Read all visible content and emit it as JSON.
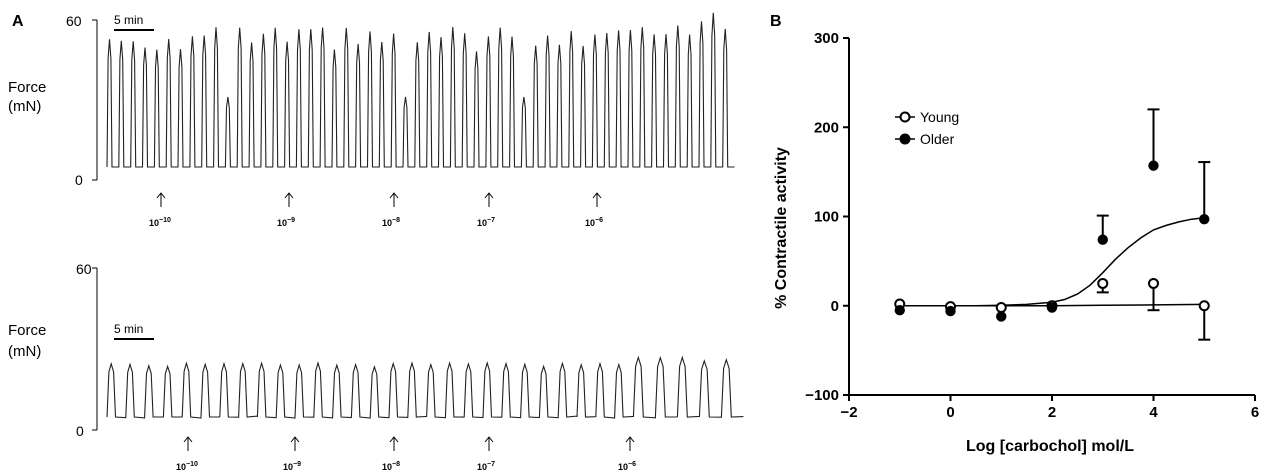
{
  "panel_a": {
    "letter": "A",
    "traces": [
      {
        "y_axis_label_line1": "Force",
        "y_axis_label_line2": "(mN)",
        "y_ticks": [
          "60",
          "0"
        ],
        "y_range": [
          0,
          60
        ],
        "scale_bar_label": "5 min",
        "additions": [
          {
            "mantissa": "10",
            "exponent": "−10"
          },
          {
            "mantissa": "10",
            "exponent": "−9"
          },
          {
            "mantissa": "10",
            "exponent": "−8"
          },
          {
            "mantissa": "10",
            "exponent": "−7"
          },
          {
            "mantissa": "10",
            "exponent": "−6"
          }
        ]
      },
      {
        "y_axis_label_line1": "Force",
        "y_axis_label_line2": "(mN)",
        "y_ticks": [
          "60",
          "0"
        ],
        "y_range": [
          0,
          60
        ],
        "scale_bar_label": "5 min",
        "additions": [
          {
            "mantissa": "10",
            "exponent": "−10"
          },
          {
            "mantissa": "10",
            "exponent": "−9"
          },
          {
            "mantissa": "10",
            "exponent": "−8"
          },
          {
            "mantissa": "10",
            "exponent": "−7"
          },
          {
            "mantissa": "10",
            "exponent": "−6"
          }
        ]
      }
    ]
  },
  "panel_b": {
    "letter": "B"
  },
  "chart_data": {
    "type": "scatter",
    "xlabel": "Log [carbochol] mol/L",
    "ylabel": "% Contractile activity",
    "xlim": [
      -2,
      6
    ],
    "ylim": [
      -100,
      300
    ],
    "x_ticks": [
      "−2",
      "0",
      "2",
      "4",
      "6"
    ],
    "y_ticks": [
      "300",
      "200",
      "100",
      "0",
      "−100"
    ],
    "legend_position": "upper-left",
    "series": [
      {
        "name": "Young",
        "marker": "open-circle",
        "x": [
          -1,
          0,
          1,
          2,
          3,
          4,
          5
        ],
        "y": [
          2,
          -1,
          -2,
          0,
          25,
          25,
          0
        ],
        "error_bar": [
          0,
          0,
          0,
          0,
          10,
          30,
          38
        ],
        "error_direction": "down",
        "fit": [
          [
            -1,
            0
          ],
          [
            0,
            0
          ],
          [
            1,
            0
          ],
          [
            2,
            0
          ],
          [
            3,
            0.5
          ],
          [
            4,
            1
          ],
          [
            5,
            1.5
          ]
        ]
      },
      {
        "name": "Older",
        "marker": "filled-circle",
        "x": [
          -1,
          0,
          1,
          2,
          3,
          4,
          5
        ],
        "y": [
          -5,
          -6,
          -12,
          -2,
          74,
          157,
          97
        ],
        "error_bar": [
          0,
          0,
          0,
          0,
          27,
          63,
          64
        ],
        "error_direction": "up",
        "fit": [
          [
            -1,
            0
          ],
          [
            -0.5,
            0
          ],
          [
            0,
            0
          ],
          [
            0.5,
            0
          ],
          [
            1,
            0.5
          ],
          [
            1.5,
            1.5
          ],
          [
            2,
            4
          ],
          [
            2.25,
            7
          ],
          [
            2.5,
            13
          ],
          [
            2.75,
            23
          ],
          [
            3,
            37
          ],
          [
            3.25,
            52
          ],
          [
            3.5,
            65
          ],
          [
            3.75,
            76
          ],
          [
            4,
            85
          ],
          [
            4.25,
            90
          ],
          [
            4.5,
            94
          ],
          [
            4.75,
            97
          ],
          [
            5,
            98.5
          ]
        ]
      }
    ]
  }
}
